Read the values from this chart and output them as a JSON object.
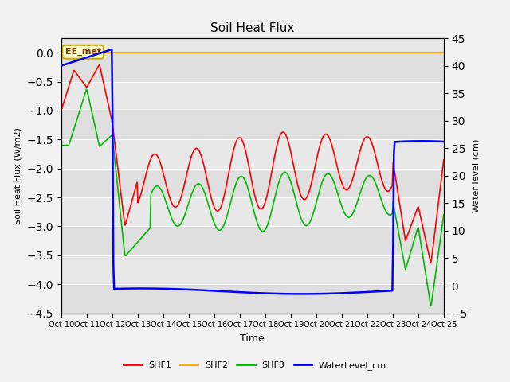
{
  "title": "Soil Heat Flux",
  "ylabel_left": "Soil Heat Flux (W/m2)",
  "ylabel_right": "Water level (cm)",
  "xlabel": "Time",
  "ylim_left": [
    -4.5,
    0.25
  ],
  "ylim_right": [
    -5,
    45
  ],
  "background_color": "#f2f2f2",
  "plot_bg_color": "#e8e8e8",
  "shf2_color": "#FFA500",
  "shf1_color": "#FF0000",
  "shf3_color": "#00BB00",
  "water_color": "#0000FF",
  "annotation_text": "EE_met",
  "annotation_box_color": "#FFFFCC",
  "annotation_border_color": "#CCAA00",
  "n_days": 16,
  "xtick_labels": [
    "Oct 10",
    "Oct 11",
    "Oct 12",
    "Oct 13",
    "Oct 14",
    "Oct 15",
    "Oct 16",
    "Oct 17",
    "Oct 18",
    "Oct 19",
    "Oct 20",
    "Oct 21",
    "Oct 22",
    "Oct 23",
    "Oct 24",
    "Oct 25"
  ]
}
